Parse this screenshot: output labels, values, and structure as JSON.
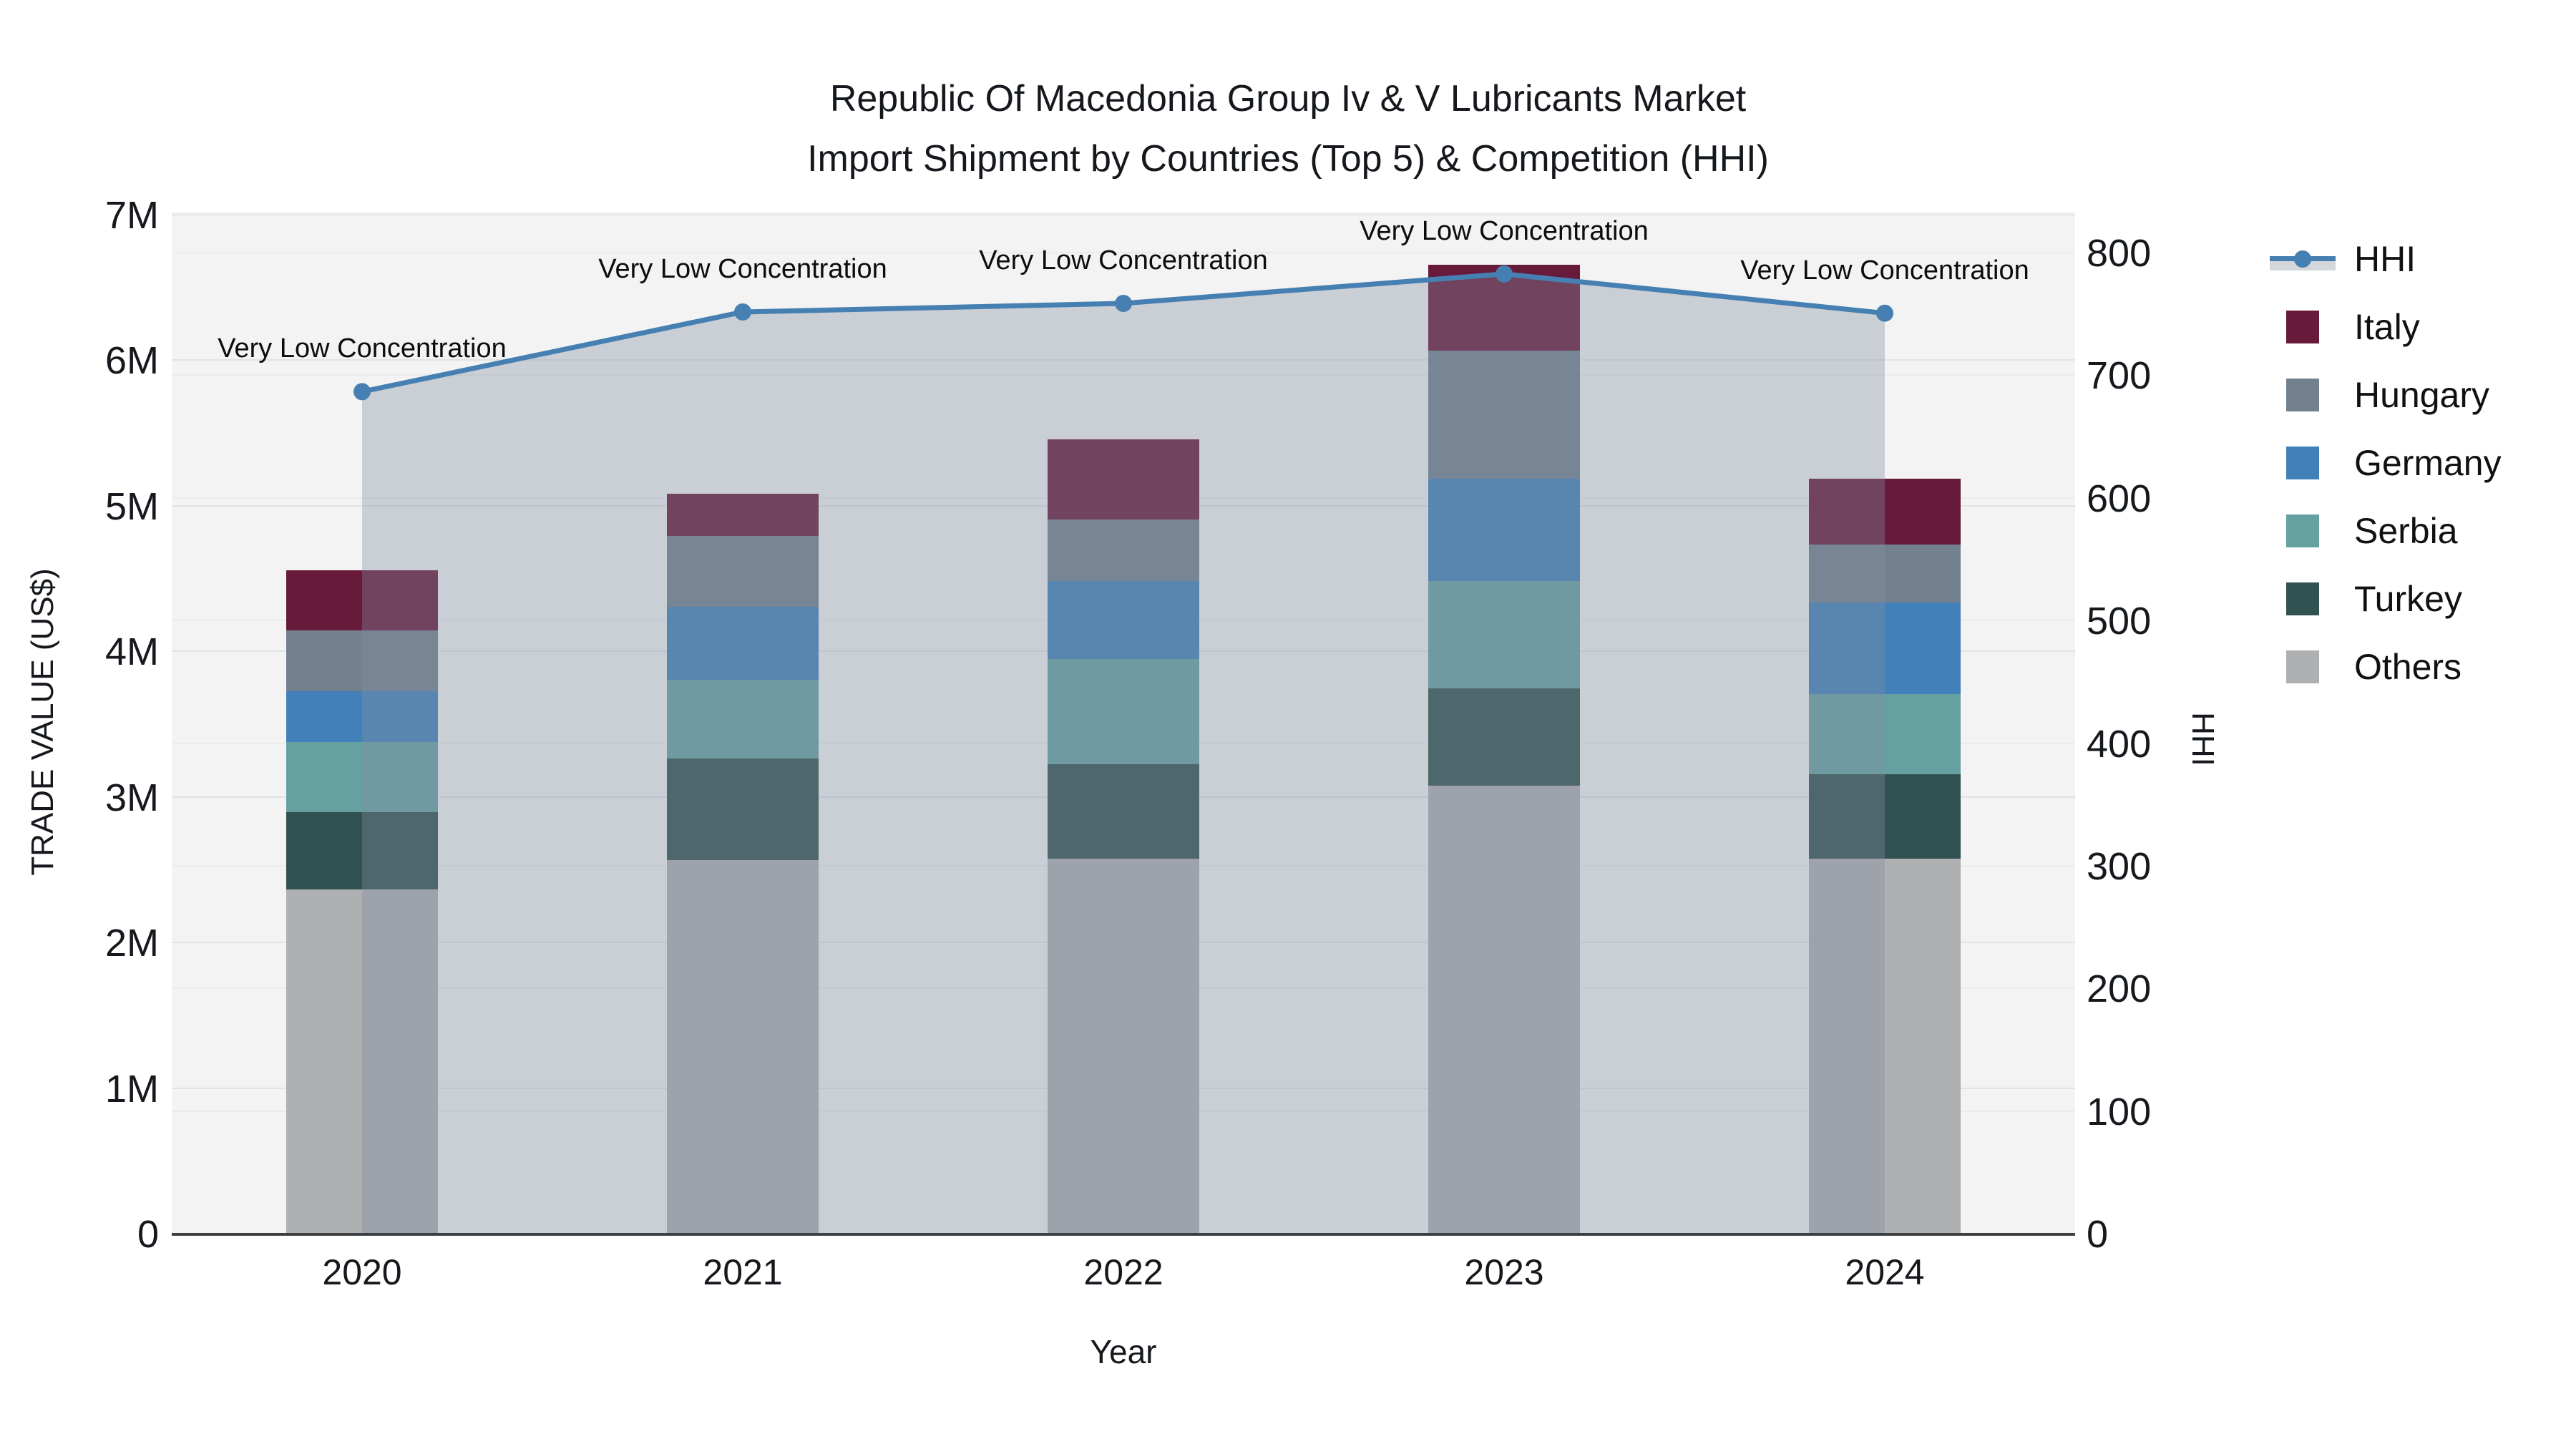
{
  "title": {
    "line1": "Republic Of Macedonia Group Iv & V Lubricants Market",
    "line2": "Import Shipment by Countries (Top 5) & Competition (HHI)"
  },
  "chart_data": {
    "type": "bar",
    "subtype": "stacked bars with overlaid line on secondary axis and area fill",
    "categories": [
      "2020",
      "2021",
      "2022",
      "2023",
      "2024"
    ],
    "bar_value_unit": "US$ millions",
    "series": [
      {
        "name": "Italy",
        "type": "bar",
        "color": "#681a3b",
        "values": [
          0.41,
          0.29,
          0.55,
          0.59,
          0.45
        ]
      },
      {
        "name": "Hungary",
        "type": "bar",
        "color": "#73818f",
        "values": [
          0.42,
          0.49,
          0.42,
          0.88,
          0.4
        ]
      },
      {
        "name": "Germany",
        "type": "bar",
        "color": "#4280ba",
        "values": [
          0.35,
          0.5,
          0.54,
          0.7,
          0.63
        ]
      },
      {
        "name": "Serbia",
        "type": "bar",
        "color": "#66a1a1",
        "values": [
          0.48,
          0.54,
          0.72,
          0.74,
          0.55
        ]
      },
      {
        "name": "Turkey",
        "type": "bar",
        "color": "#315250",
        "values": [
          0.53,
          0.7,
          0.65,
          0.67,
          0.58
        ]
      },
      {
        "name": "Others",
        "type": "bar",
        "color": "#aeb0b1",
        "values": [
          2.36,
          2.56,
          2.57,
          3.07,
          2.57
        ]
      },
      {
        "name": "HHI",
        "type": "line",
        "axis": "right",
        "color": "#4680b2",
        "area_fill": "rgba(130,142,162,0.36)",
        "values": [
          686,
          751,
          758,
          782,
          750
        ]
      }
    ],
    "stack_order_bottom_to_top": [
      "Others",
      "Turkey",
      "Serbia",
      "Germany",
      "Hungary",
      "Italy"
    ],
    "annotations": [
      {
        "text": "Very Low Concentration",
        "category": "2020"
      },
      {
        "text": "Very Low Concentration",
        "category": "2021"
      },
      {
        "text": "Very Low Concentration",
        "category": "2022"
      },
      {
        "text": "Very Low Concentration",
        "category": "2023"
      },
      {
        "text": "Very Low Concentration",
        "category": "2024"
      }
    ],
    "xlabel": "Year",
    "y_left": {
      "title": "TRADE VALUE (US$)",
      "ticks": [
        "0",
        "1M",
        "2M",
        "3M",
        "4M",
        "5M",
        "6M",
        "7M"
      ],
      "tick_values": [
        0,
        1,
        2,
        3,
        4,
        5,
        6,
        7
      ],
      "max": 7
    },
    "y_right": {
      "title": "HHI",
      "ticks": [
        "0",
        "100",
        "200",
        "300",
        "400",
        "500",
        "600",
        "700",
        "800"
      ],
      "tick_values": [
        0,
        100,
        200,
        300,
        400,
        500,
        600,
        700,
        800
      ],
      "max": 800
    },
    "grid": true,
    "legend_position": "right",
    "legend_order": [
      "HHI",
      "Italy",
      "Hungary",
      "Germany",
      "Serbia",
      "Turkey",
      "Others"
    ],
    "plot_background": "#f2f3f2"
  }
}
